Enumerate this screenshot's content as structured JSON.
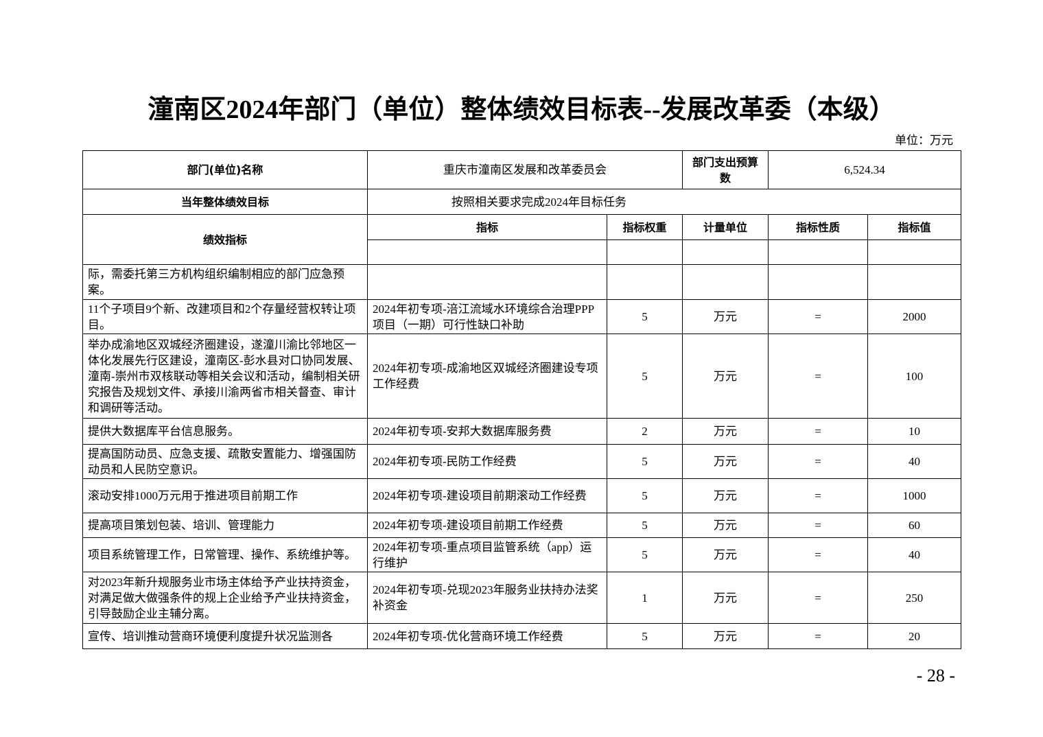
{
  "title": "潼南区2024年部门（单位）整体绩效目标表--发展改革委（本级）",
  "unit": "单位：万元",
  "header": {
    "dept_label": "部门(单位)名称",
    "dept_value": "重庆市潼南区发展和改革委员会",
    "budget_label": "部门支出预算数",
    "budget_value": "6,524.34",
    "goal_label": "当年整体绩效目标",
    "goal_value": "按照相关要求完成2024年目标任务",
    "perf_label": "绩效指标",
    "columns": [
      "指标",
      "指标权重",
      "计量单位",
      "指标性质",
      "指标值"
    ]
  },
  "rows": [
    {
      "desc": "际，需委托第三方机构组织编制相应的部门应急预案。",
      "indicator": "",
      "weight": "",
      "unit": "",
      "nature": "",
      "value": ""
    },
    {
      "desc": "11个子项目9个新、改建项目和2个存量经营权转让项目。",
      "indicator": "2024年初专项-涪江流域水环境综合治理PPP项目（一期）可行性缺口补助",
      "weight": "5",
      "unit": "万元",
      "nature": "=",
      "value": "2000"
    },
    {
      "desc": "举办成渝地区双城经济圈建设，遂潼川渝比邻地区一体化发展先行区建设，潼南区-彭水县对口协同发展、潼南-崇州市双核联动等相关会议和活动，编制相关研究报告及规划文件、承接川渝两省市相关督查、审计和调研等活动。",
      "indicator": "2024年初专项-成渝地区双城经济圈建设专项工作经费",
      "weight": "5",
      "unit": "万元",
      "nature": "=",
      "value": "100"
    },
    {
      "desc": "提供大数据库平台信息服务。",
      "indicator": "2024年初专项-安邦大数据库服务费",
      "weight": "2",
      "unit": "万元",
      "nature": "=",
      "value": "10"
    },
    {
      "desc": "提高国防动员、应急支援、疏散安置能力、增强国防动员和人民防空意识。",
      "indicator": "2024年初专项-民防工作经费",
      "weight": "5",
      "unit": "万元",
      "nature": "=",
      "value": "40"
    },
    {
      "desc": "滚动安排1000万元用于推进项目前期工作",
      "indicator": "2024年初专项-建设项目前期滚动工作经费",
      "weight": "5",
      "unit": "万元",
      "nature": "=",
      "value": "1000"
    },
    {
      "desc": "提高项目策划包装、培训、管理能力",
      "indicator": "2024年初专项-建设项目前期工作经费",
      "weight": "5",
      "unit": "万元",
      "nature": "=",
      "value": "60"
    },
    {
      "desc": "项目系统管理工作，日常管理、操作、系统维护等。",
      "indicator": "2024年初专项-重点项目监管系统（app）运行维护",
      "weight": "5",
      "unit": "万元",
      "nature": "=",
      "value": "40"
    },
    {
      "desc": "对2023年新升规服务业市场主体给予产业扶持资金，对满足做大做强条件的规上企业给予产业扶持资金，引导鼓励企业主辅分离。",
      "indicator": "2024年初专项-兑现2023年服务业扶持办法奖补资金",
      "weight": "1",
      "unit": "万元",
      "nature": "=",
      "value": "250"
    },
    {
      "desc": "宣传、培训推动营商环境便利度提升状况监测各",
      "indicator": "2024年初专项-优化营商环境工作经费",
      "weight": "5",
      "unit": "万元",
      "nature": "=",
      "value": "20"
    }
  ],
  "page_number": "- 28 -"
}
